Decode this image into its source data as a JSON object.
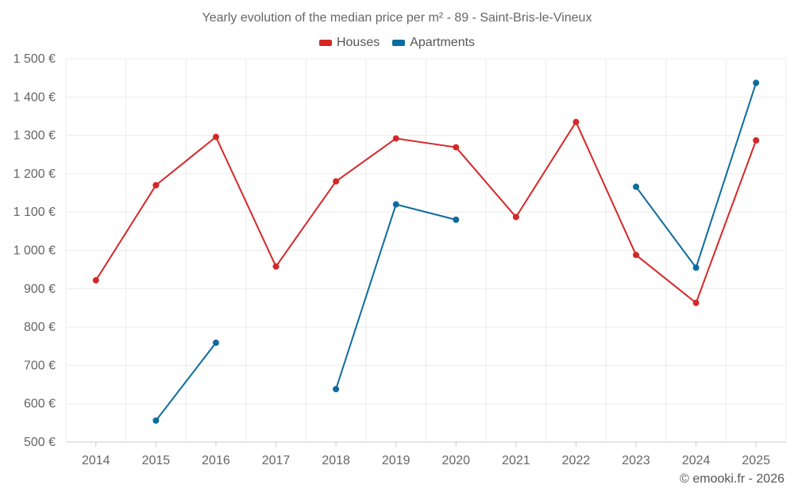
{
  "chart_data": {
    "type": "line",
    "title": "Yearly evolution of the median price per m² - 89 - Saint-Bris-le-Vineux",
    "categories": [
      "2014",
      "2015",
      "2016",
      "2017",
      "2018",
      "2019",
      "2020",
      "2021",
      "2022",
      "2023",
      "2024",
      "2025"
    ],
    "yticks": [
      "500 €",
      "600 €",
      "700 €",
      "800 €",
      "900 €",
      "1 000 €",
      "1 100 €",
      "1 200 €",
      "1 300 €",
      "1 400 €",
      "1 500 €"
    ],
    "ylim": [
      500,
      1500
    ],
    "grid": true,
    "legend_position": "top-center",
    "series": [
      {
        "name": "Houses",
        "color": "#d62728",
        "values": [
          922,
          1170,
          1296,
          958,
          1180,
          1292,
          1269,
          1087,
          1335,
          988,
          863,
          1287
        ]
      },
      {
        "name": "Apartments",
        "color": "#0e6b9e",
        "values": [
          null,
          556,
          759,
          null,
          638,
          1120,
          1080,
          null,
          null,
          1166,
          955,
          1437
        ]
      }
    ]
  },
  "credit": "© emooki.fr - 2026"
}
